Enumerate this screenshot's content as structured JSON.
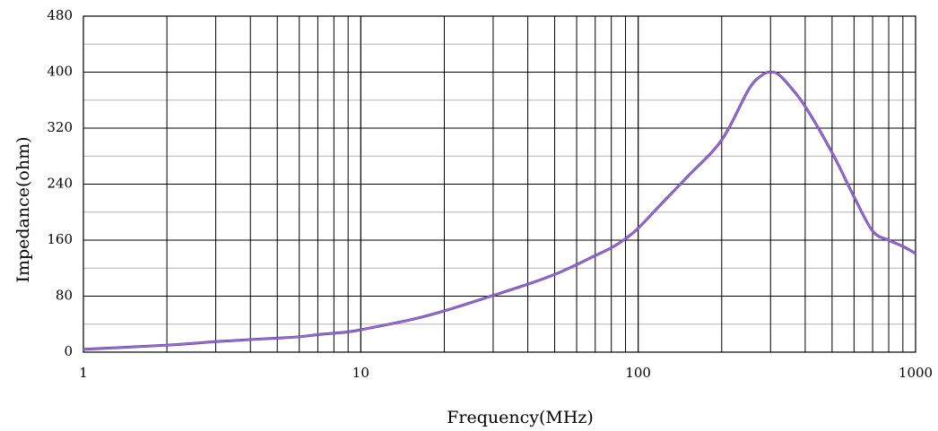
{
  "chart_data": {
    "type": "line",
    "xlabel": "Frequency(MHz)",
    "ylabel": "Impedance(ohm)",
    "xscale": "log",
    "xlim": [
      1,
      1000
    ],
    "ylim": [
      0,
      480
    ],
    "x_tick_labels": [
      "1",
      "10",
      "100",
      "1000"
    ],
    "y_tick_labels": [
      "0",
      "80",
      "160",
      "240",
      "320",
      "400",
      "480"
    ],
    "grid": true,
    "legend": "none",
    "colors": {
      "line": "#a070d8",
      "line_edge": "#5b3f9e",
      "major_grid": "#000000",
      "minor_grid": "#b4b4b4",
      "axis": "#000000"
    },
    "series": [
      {
        "x": [
          1,
          2,
          3,
          4,
          5,
          6,
          7,
          8,
          9,
          10,
          15,
          20,
          30,
          40,
          50,
          60,
          70,
          80,
          90,
          100,
          120,
          150,
          200,
          250,
          280,
          300,
          320,
          350,
          400,
          500,
          600,
          700,
          800,
          900,
          1000
        ],
        "values": [
          4,
          10,
          15,
          18,
          20,
          22,
          25,
          27,
          29,
          32,
          46,
          59,
          81,
          97,
          111,
          125,
          138,
          149,
          162,
          177,
          210,
          250,
          303,
          375,
          396,
          400,
          397,
          381,
          351,
          285,
          222,
          173,
          160,
          151,
          141
        ]
      }
    ]
  }
}
